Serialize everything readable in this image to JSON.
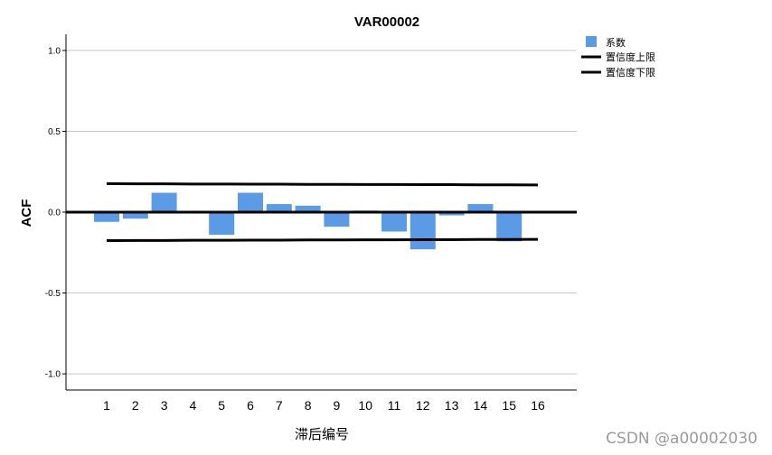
{
  "chart_data": {
    "type": "bar",
    "title": "VAR00002",
    "xlabel": "滞后编号",
    "ylabel": "ACF",
    "ylim": [
      -1.1,
      1.1
    ],
    "yticks": [
      1.0,
      0.5,
      0.0,
      -0.5,
      -1.0
    ],
    "ytick_labels": [
      "1.0",
      "0.5",
      "0.0",
      "-0.5",
      "-1.0"
    ],
    "grid": true,
    "legend_position": "top-right",
    "categories": [
      "1",
      "2",
      "3",
      "4",
      "5",
      "6",
      "7",
      "8",
      "9",
      "10",
      "11",
      "12",
      "13",
      "14",
      "15",
      "16"
    ],
    "series": [
      {
        "name": "系数",
        "color": "#5b9be6",
        "values": [
          -0.06,
          -0.04,
          0.12,
          0.0,
          -0.14,
          0.12,
          0.05,
          0.04,
          -0.09,
          0.01,
          -0.12,
          -0.23,
          -0.02,
          0.05,
          -0.18,
          0.0
        ]
      }
    ],
    "lines": [
      {
        "name": "置信度上限",
        "color": "#000000",
        "values": [
          0.176,
          0.175,
          0.175,
          0.174,
          0.174,
          0.173,
          0.173,
          0.172,
          0.172,
          0.171,
          0.171,
          0.17,
          0.17,
          0.169,
          0.169,
          0.168
        ]
      },
      {
        "name": "置信度下限",
        "color": "#000000",
        "values": [
          -0.176,
          -0.175,
          -0.175,
          -0.174,
          -0.174,
          -0.173,
          -0.173,
          -0.172,
          -0.172,
          -0.171,
          -0.171,
          -0.17,
          -0.17,
          -0.169,
          -0.169,
          -0.168
        ]
      }
    ]
  },
  "watermark": "CSDN @a00002030"
}
